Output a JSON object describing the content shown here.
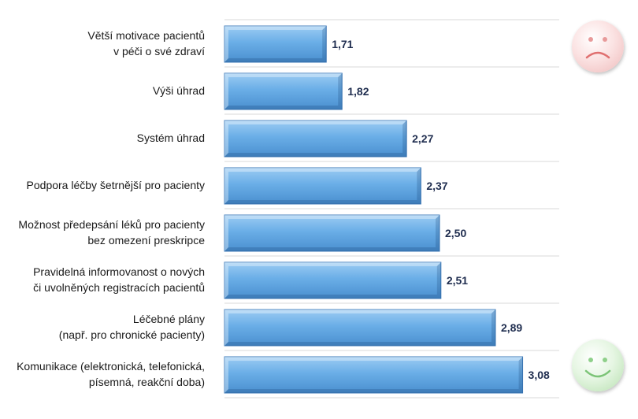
{
  "chart_data": {
    "type": "bar",
    "orientation": "horizontal",
    "categories": [
      "Větší motivace pacientů\nv péči o své zdraví",
      "Výši úhrad",
      "Systém úhrad",
      "Podpora léčby šetrnější pro pacienty",
      "Možnost předepsání léků pro pacienty\nbez omezení preskripce",
      "Pravidelná informovanost  o nových\nči uvolněných registracích pacientů",
      "Léčebné plány\n(např. pro chronické pacienty)",
      "Komunikace (elektronická, telefonická,\npísemná, reakční doba)"
    ],
    "values": [
      1.71,
      1.82,
      2.27,
      2.37,
      2.5,
      2.51,
      2.89,
      3.08
    ],
    "value_labels": [
      "1,71",
      "1,82",
      "2,27",
      "2,37",
      "2,50",
      "2,51",
      "2,89",
      "3,08"
    ],
    "xlim": [
      1,
      4
    ],
    "grid": true,
    "colors": {
      "bar": "#6aaee7",
      "bar_dark": "#4a8fcf",
      "bar_edge": "#3b78b8",
      "grid": "#d9d9d9",
      "value": "#1f2d4f"
    }
  },
  "icons": {
    "top": "sad-face-icon",
    "bottom": "happy-face-icon"
  }
}
